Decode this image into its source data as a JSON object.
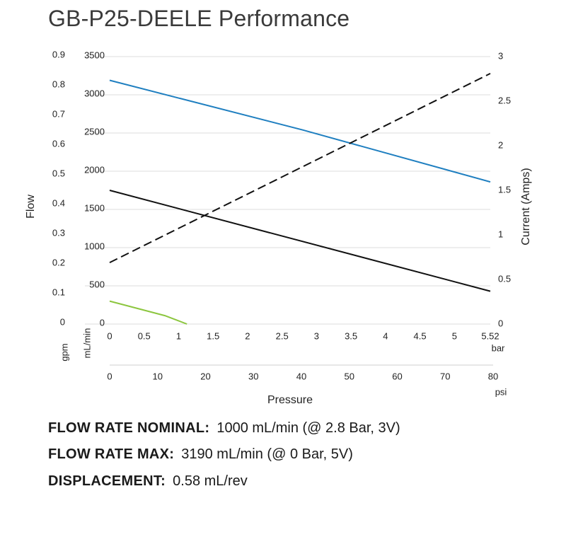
{
  "title": "GB-P25-DEELE Performance",
  "specs": [
    {
      "label": "FLOW RATE NOMINAL:",
      "value": "1000 mL/min (@ 2.8 Bar, 3V)"
    },
    {
      "label": "FLOW RATE MAX:",
      "value": "3190 mL/min (@ 0 Bar, 5V)"
    },
    {
      "label": "DISPLACEMENT:",
      "value": "0.58 mL/rev"
    }
  ],
  "chart_data": {
    "type": "line",
    "title": "GB-P25-DEELE Performance",
    "xlabel": "Pressure",
    "ylabel_left": "Flow",
    "ylabel_right": "Current (Amps)",
    "x_unit_bar": "bar",
    "x_unit_psi": "psi",
    "y_unit_gpm": "gpm",
    "y_unit_mlmin": "mL/min",
    "xlim_bar": [
      0,
      5.52
    ],
    "xticks_bar": [
      "0",
      "0.5",
      "1",
      "1.5",
      "2",
      "2.5",
      "3",
      "3.5",
      "4",
      "4.5",
      "5",
      "5.52"
    ],
    "xticks_psi": [
      "0",
      "10",
      "20",
      "30",
      "40",
      "50",
      "60",
      "70",
      "80"
    ],
    "ylim_mlmin": [
      0,
      3500
    ],
    "yticks_mlmin": [
      "0",
      "500",
      "1000",
      "1500",
      "2000",
      "2500",
      "3000",
      "3500"
    ],
    "ylim_gpm": [
      0,
      0.9
    ],
    "yticks_gpm": [
      "0",
      "0.1",
      "0.2",
      "0.3",
      "0.4",
      "0.5",
      "0.6",
      "0.7",
      "0.8",
      "0.9"
    ],
    "ylim_amps": [
      0,
      3
    ],
    "yticks_amps": [
      "0",
      "0.5",
      "1",
      "1.5",
      "2",
      "2.5",
      "3"
    ],
    "grid": true,
    "series": [
      {
        "axis": "flow",
        "color": "#1f7fc0",
        "dash": false,
        "points": [
          [
            0,
            3190
          ],
          [
            2.8,
            2540
          ],
          [
            5.52,
            1860
          ]
        ]
      },
      {
        "axis": "flow",
        "color": "#111111",
        "dash": false,
        "points": [
          [
            0,
            1750
          ],
          [
            5.52,
            430
          ]
        ]
      },
      {
        "axis": "flow",
        "color": "#8cc63f",
        "dash": false,
        "points": [
          [
            0,
            300
          ],
          [
            0.8,
            110
          ],
          [
            1.12,
            0
          ]
        ]
      },
      {
        "axis": "current",
        "color": "#111111",
        "dash": true,
        "points": [
          [
            0,
            0.69
          ],
          [
            5.52,
            2.81
          ]
        ]
      }
    ]
  }
}
